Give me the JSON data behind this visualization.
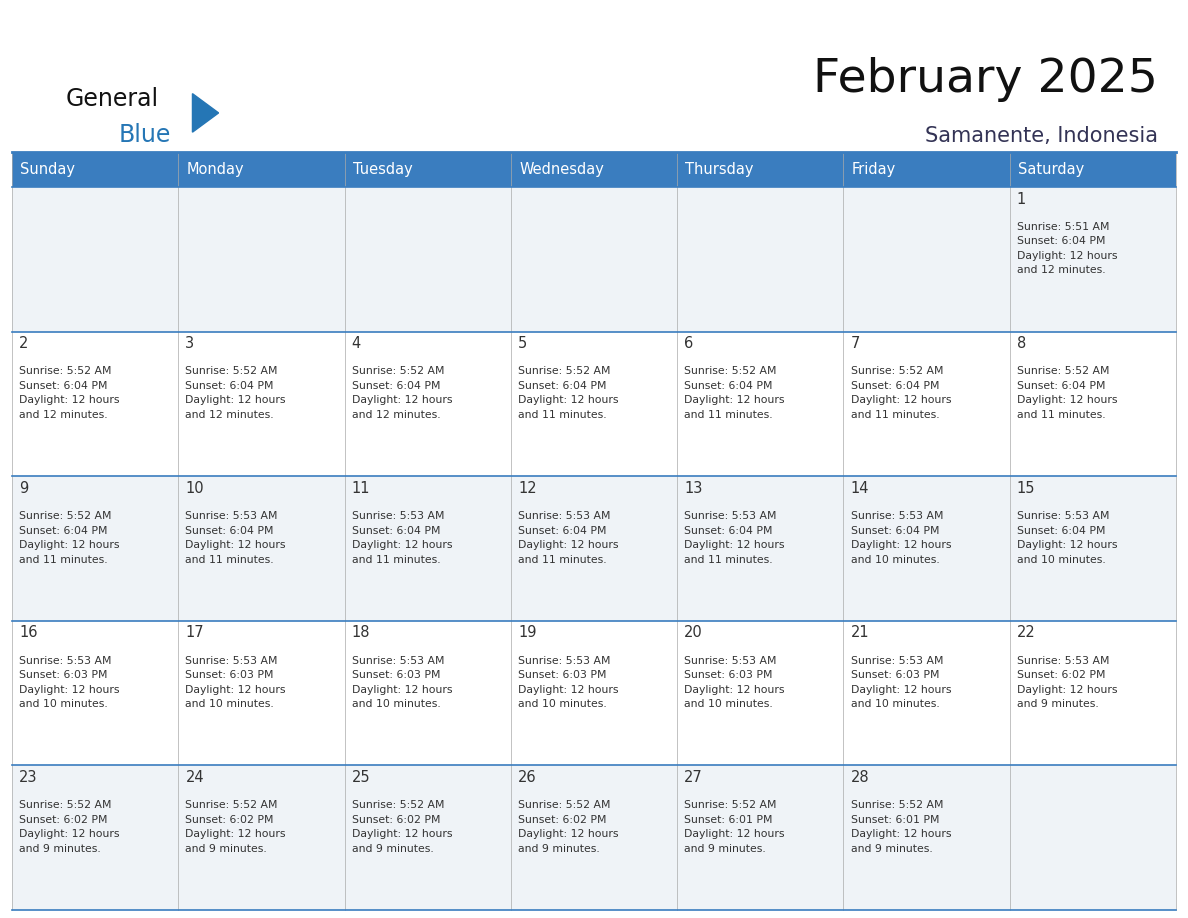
{
  "title": "February 2025",
  "subtitle": "Samanente, Indonesia",
  "header_bg_color": "#3a7dbf",
  "header_text_color": "#ffffff",
  "cell_bg_odd": "#eff3f7",
  "cell_bg_even": "#ffffff",
  "row_line_color": "#3a7dbf",
  "text_color": "#333333",
  "title_color": "#111111",
  "subtitle_color": "#333355",
  "logo_text1_color": "#111111",
  "logo_text2_color": "#2576b5",
  "logo_triangle_color": "#2576b5",
  "day_names": [
    "Sunday",
    "Monday",
    "Tuesday",
    "Wednesday",
    "Thursday",
    "Friday",
    "Saturday"
  ],
  "days": [
    {
      "day": 1,
      "col": 6,
      "row": 0,
      "sunrise": "5:51 AM",
      "sunset": "6:04 PM",
      "daylight": "12 hours and 12 minutes."
    },
    {
      "day": 2,
      "col": 0,
      "row": 1,
      "sunrise": "5:52 AM",
      "sunset": "6:04 PM",
      "daylight": "12 hours and 12 minutes."
    },
    {
      "day": 3,
      "col": 1,
      "row": 1,
      "sunrise": "5:52 AM",
      "sunset": "6:04 PM",
      "daylight": "12 hours and 12 minutes."
    },
    {
      "day": 4,
      "col": 2,
      "row": 1,
      "sunrise": "5:52 AM",
      "sunset": "6:04 PM",
      "daylight": "12 hours and 12 minutes."
    },
    {
      "day": 5,
      "col": 3,
      "row": 1,
      "sunrise": "5:52 AM",
      "sunset": "6:04 PM",
      "daylight": "12 hours and 11 minutes."
    },
    {
      "day": 6,
      "col": 4,
      "row": 1,
      "sunrise": "5:52 AM",
      "sunset": "6:04 PM",
      "daylight": "12 hours and 11 minutes."
    },
    {
      "day": 7,
      "col": 5,
      "row": 1,
      "sunrise": "5:52 AM",
      "sunset": "6:04 PM",
      "daylight": "12 hours and 11 minutes."
    },
    {
      "day": 8,
      "col": 6,
      "row": 1,
      "sunrise": "5:52 AM",
      "sunset": "6:04 PM",
      "daylight": "12 hours and 11 minutes."
    },
    {
      "day": 9,
      "col": 0,
      "row": 2,
      "sunrise": "5:52 AM",
      "sunset": "6:04 PM",
      "daylight": "12 hours and 11 minutes."
    },
    {
      "day": 10,
      "col": 1,
      "row": 2,
      "sunrise": "5:53 AM",
      "sunset": "6:04 PM",
      "daylight": "12 hours and 11 minutes."
    },
    {
      "day": 11,
      "col": 2,
      "row": 2,
      "sunrise": "5:53 AM",
      "sunset": "6:04 PM",
      "daylight": "12 hours and 11 minutes."
    },
    {
      "day": 12,
      "col": 3,
      "row": 2,
      "sunrise": "5:53 AM",
      "sunset": "6:04 PM",
      "daylight": "12 hours and 11 minutes."
    },
    {
      "day": 13,
      "col": 4,
      "row": 2,
      "sunrise": "5:53 AM",
      "sunset": "6:04 PM",
      "daylight": "12 hours and 11 minutes."
    },
    {
      "day": 14,
      "col": 5,
      "row": 2,
      "sunrise": "5:53 AM",
      "sunset": "6:04 PM",
      "daylight": "12 hours and 10 minutes."
    },
    {
      "day": 15,
      "col": 6,
      "row": 2,
      "sunrise": "5:53 AM",
      "sunset": "6:04 PM",
      "daylight": "12 hours and 10 minutes."
    },
    {
      "day": 16,
      "col": 0,
      "row": 3,
      "sunrise": "5:53 AM",
      "sunset": "6:03 PM",
      "daylight": "12 hours and 10 minutes."
    },
    {
      "day": 17,
      "col": 1,
      "row": 3,
      "sunrise": "5:53 AM",
      "sunset": "6:03 PM",
      "daylight": "12 hours and 10 minutes."
    },
    {
      "day": 18,
      "col": 2,
      "row": 3,
      "sunrise": "5:53 AM",
      "sunset": "6:03 PM",
      "daylight": "12 hours and 10 minutes."
    },
    {
      "day": 19,
      "col": 3,
      "row": 3,
      "sunrise": "5:53 AM",
      "sunset": "6:03 PM",
      "daylight": "12 hours and 10 minutes."
    },
    {
      "day": 20,
      "col": 4,
      "row": 3,
      "sunrise": "5:53 AM",
      "sunset": "6:03 PM",
      "daylight": "12 hours and 10 minutes."
    },
    {
      "day": 21,
      "col": 5,
      "row": 3,
      "sunrise": "5:53 AM",
      "sunset": "6:03 PM",
      "daylight": "12 hours and 10 minutes."
    },
    {
      "day": 22,
      "col": 6,
      "row": 3,
      "sunrise": "5:53 AM",
      "sunset": "6:02 PM",
      "daylight": "12 hours and 9 minutes."
    },
    {
      "day": 23,
      "col": 0,
      "row": 4,
      "sunrise": "5:52 AM",
      "sunset": "6:02 PM",
      "daylight": "12 hours and 9 minutes."
    },
    {
      "day": 24,
      "col": 1,
      "row": 4,
      "sunrise": "5:52 AM",
      "sunset": "6:02 PM",
      "daylight": "12 hours and 9 minutes."
    },
    {
      "day": 25,
      "col": 2,
      "row": 4,
      "sunrise": "5:52 AM",
      "sunset": "6:02 PM",
      "daylight": "12 hours and 9 minutes."
    },
    {
      "day": 26,
      "col": 3,
      "row": 4,
      "sunrise": "5:52 AM",
      "sunset": "6:02 PM",
      "daylight": "12 hours and 9 minutes."
    },
    {
      "day": 27,
      "col": 4,
      "row": 4,
      "sunrise": "5:52 AM",
      "sunset": "6:01 PM",
      "daylight": "12 hours and 9 minutes."
    },
    {
      "day": 28,
      "col": 5,
      "row": 4,
      "sunrise": "5:52 AM",
      "sunset": "6:01 PM",
      "daylight": "12 hours and 9 minutes."
    }
  ],
  "num_rows": 5,
  "num_cols": 7,
  "fig_width": 11.88,
  "fig_height": 9.18,
  "dpi": 100
}
